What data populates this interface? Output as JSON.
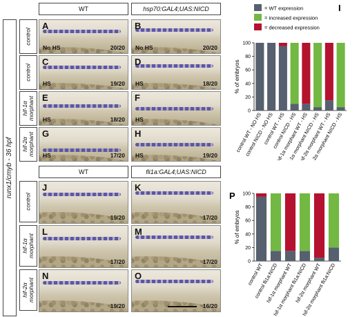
{
  "figure": {
    "side_label": "runx1/cmyb - 36 hpf",
    "top_headers": {
      "left": "WT",
      "right": "hsp70:GAL4;UAS:NICD"
    },
    "bottom_headers": {
      "left": "WT",
      "right": "fli1a:GAL4;UAS:NICD"
    },
    "row_labels": {
      "top": [
        "control",
        "control",
        "hif-1α\nmorphant",
        "hif-2α\nmorphant"
      ],
      "bottom": [
        "control",
        "hif-1α\nmorphant",
        "hif-2α\nmorphant"
      ]
    },
    "panels": [
      {
        "letter": "A",
        "hs": "No HS",
        "count": "20/20"
      },
      {
        "letter": "B",
        "hs": "No HS",
        "count": "20/20"
      },
      {
        "letter": "C",
        "hs": "HS",
        "count": "19/20"
      },
      {
        "letter": "D",
        "hs": "HS",
        "count": "18/20"
      },
      {
        "letter": "E",
        "hs": "HS",
        "count": "18/20"
      },
      {
        "letter": "F",
        "hs": "HS",
        "count": ""
      },
      {
        "letter": "G",
        "hs": "HS",
        "count": "17/20"
      },
      {
        "letter": "H",
        "hs": "HS",
        "count": "19/20"
      },
      {
        "letter": "J",
        "hs": "",
        "count": "19/20"
      },
      {
        "letter": "K",
        "hs": "",
        "count": "17/20"
      },
      {
        "letter": "L",
        "hs": "",
        "count": "17/20"
      },
      {
        "letter": "M",
        "hs": "",
        "count": "17/20"
      },
      {
        "letter": "N",
        "hs": "",
        "count": "19/20"
      },
      {
        "letter": "O",
        "hs": "",
        "count": "16/20"
      }
    ]
  },
  "colors": {
    "wt": "#56606e",
    "increased": "#72b843",
    "decreased": "#b4122f",
    "stain": "#5c56a8"
  },
  "chart_data": [
    {
      "panel_letter": "I",
      "type": "bar",
      "stacked": true,
      "ylabel": "% of embryos",
      "ylim": [
        0,
        100
      ],
      "yticks": [
        0,
        20,
        40,
        60,
        80,
        100
      ],
      "legend": [
        "= WT expression",
        "= increased expression",
        "= decreased expression"
      ],
      "categories": [
        "control WT - NO HS",
        "control NICD - NO HS",
        "control WT - HS",
        "control NICD - HS",
        "hif-1α morphant WT - HS",
        "hif-1α morphant NICD - HS",
        "hif-2α morphant WT - HS",
        "hif-2α morphant NICD - HS"
      ],
      "series": [
        {
          "name": "WT expression",
          "values": [
            100,
            100,
            95,
            10,
            10,
            5,
            15,
            5
          ]
        },
        {
          "name": "increased expression",
          "values": [
            0,
            0,
            0,
            90,
            0,
            95,
            0,
            95
          ]
        },
        {
          "name": "decreased expression",
          "values": [
            0,
            0,
            5,
            0,
            90,
            0,
            85,
            0
          ]
        }
      ]
    },
    {
      "panel_letter": "P",
      "type": "bar",
      "stacked": true,
      "ylabel": "% of embryos",
      "ylim": [
        0,
        100
      ],
      "yticks": [
        0,
        20,
        40,
        60,
        80,
        100
      ],
      "categories": [
        "control WT",
        "control fli1a:NICD",
        "hif-1α morphant WT",
        "hif-1α morphant fli1a:NICD",
        "hif-2α morphant WT",
        "hif-2α morphant fli1a:NICD"
      ],
      "series": [
        {
          "name": "WT expression",
          "values": [
            95,
            15,
            15,
            15,
            5,
            20
          ]
        },
        {
          "name": "increased expression",
          "values": [
            0,
            85,
            0,
            85,
            0,
            80
          ]
        },
        {
          "name": "decreased expression",
          "values": [
            5,
            0,
            85,
            0,
            95,
            0
          ]
        }
      ]
    }
  ]
}
